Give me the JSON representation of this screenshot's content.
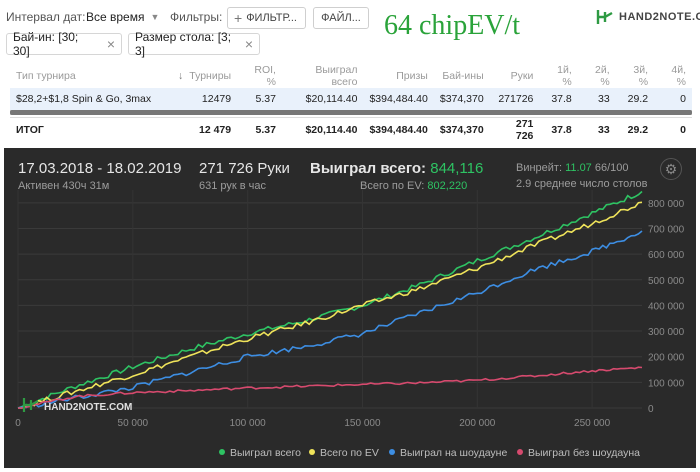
{
  "toolbar": {
    "date_interval_label": "Интервал дат:",
    "date_interval_value": "Все время",
    "filters_label": "Фильтры:",
    "filter_button": "ФИЛЬТР...",
    "file_button": "ФАЙЛ..."
  },
  "overlay_text": "64 chipEV/t",
  "logo_text": "HAND2NOTE.COM",
  "chips": [
    {
      "label": "Бай-ин: [30; 30]"
    },
    {
      "label": "Размер стола: [3; 3]"
    }
  ],
  "table": {
    "columns": [
      "Тип турнира",
      "Турниры",
      "ROI, %",
      "Выиграл всего",
      "Призы",
      "Бай-ины",
      "Руки",
      "1й, %",
      "2й, %",
      "3й, %",
      "4й, %"
    ],
    "row": [
      "$28,2+$1,8 Spin & Go, 3max",
      "12479",
      "5.37",
      "$20,114.40",
      "$394,484.40",
      "$374,370",
      "271726",
      "37.8",
      "33",
      "29.2",
      "0"
    ],
    "total": [
      "ИТОГ",
      "12 479",
      "5.37",
      "$20,114.40",
      "$394,484.40",
      "$374,370",
      "271 726",
      "37.8",
      "33",
      "29.2",
      "0"
    ]
  },
  "summary": {
    "dates": "17.03.2018 - 18.02.2019",
    "active": "Активен 430ч 31м",
    "hands": "271 726 Руки",
    "hands_per_hour": "631 рук в час",
    "won_total_label": "Выиграл всего:",
    "won_total_value": "844,116",
    "ev_label": "Всего по EV:",
    "ev_value": "802,220",
    "winrate_label": "Винрейт:",
    "winrate_value": "11.07",
    "winrate_rest": "66/100",
    "avg_tables": "2.9 среднее число столов"
  },
  "colors": {
    "green": "#2ec363",
    "yellow": "#efe35a",
    "blue": "#3d8ee3",
    "red": "#d64a6e",
    "panel_bg": "#2a2a2a"
  },
  "chart_data": {
    "type": "line",
    "xlim": [
      0,
      271726
    ],
    "ylim": [
      0,
      850000
    ],
    "x_ticks": [
      "0",
      "50 000",
      "100 000",
      "150 000",
      "200 000",
      "250 000"
    ],
    "y_ticks": [
      "0",
      "100 000",
      "200 000",
      "300 000",
      "400 000",
      "500 000",
      "600 000",
      "700 000",
      "800 000"
    ],
    "watermark": "HAND2NOTE.COM",
    "legend_position": "bottom-right",
    "series": [
      {
        "name": "Выиграл всего",
        "color": "#2ec363",
        "x": [
          0,
          25000,
          50000,
          75000,
          100000,
          125000,
          150000,
          175000,
          200000,
          225000,
          250000,
          271726
        ],
        "y": [
          0,
          85000,
          160000,
          230000,
          290000,
          340000,
          400000,
          480000,
          575000,
          665000,
          760000,
          844116
        ]
      },
      {
        "name": "Всего по EV",
        "color": "#efe35a",
        "x": [
          0,
          25000,
          50000,
          75000,
          100000,
          125000,
          150000,
          175000,
          200000,
          225000,
          250000,
          271726
        ],
        "y": [
          0,
          65000,
          130000,
          200000,
          270000,
          330000,
          400000,
          465000,
          545000,
          635000,
          720000,
          802220
        ]
      },
      {
        "name": "Выиграл на шоудауне",
        "color": "#3d8ee3",
        "x": [
          0,
          25000,
          50000,
          75000,
          100000,
          125000,
          150000,
          175000,
          200000,
          225000,
          250000,
          271726
        ],
        "y": [
          0,
          40000,
          80000,
          140000,
          200000,
          240000,
          290000,
          370000,
          450000,
          540000,
          610000,
          690000
        ]
      },
      {
        "name": "Выиграл без шоудауна",
        "color": "#d64a6e",
        "x": [
          0,
          25000,
          50000,
          75000,
          100000,
          125000,
          150000,
          175000,
          200000,
          225000,
          250000,
          271726
        ],
        "y": [
          0,
          45000,
          60000,
          68000,
          78000,
          85000,
          92000,
          98000,
          108000,
          125000,
          145000,
          158000
        ]
      }
    ]
  }
}
